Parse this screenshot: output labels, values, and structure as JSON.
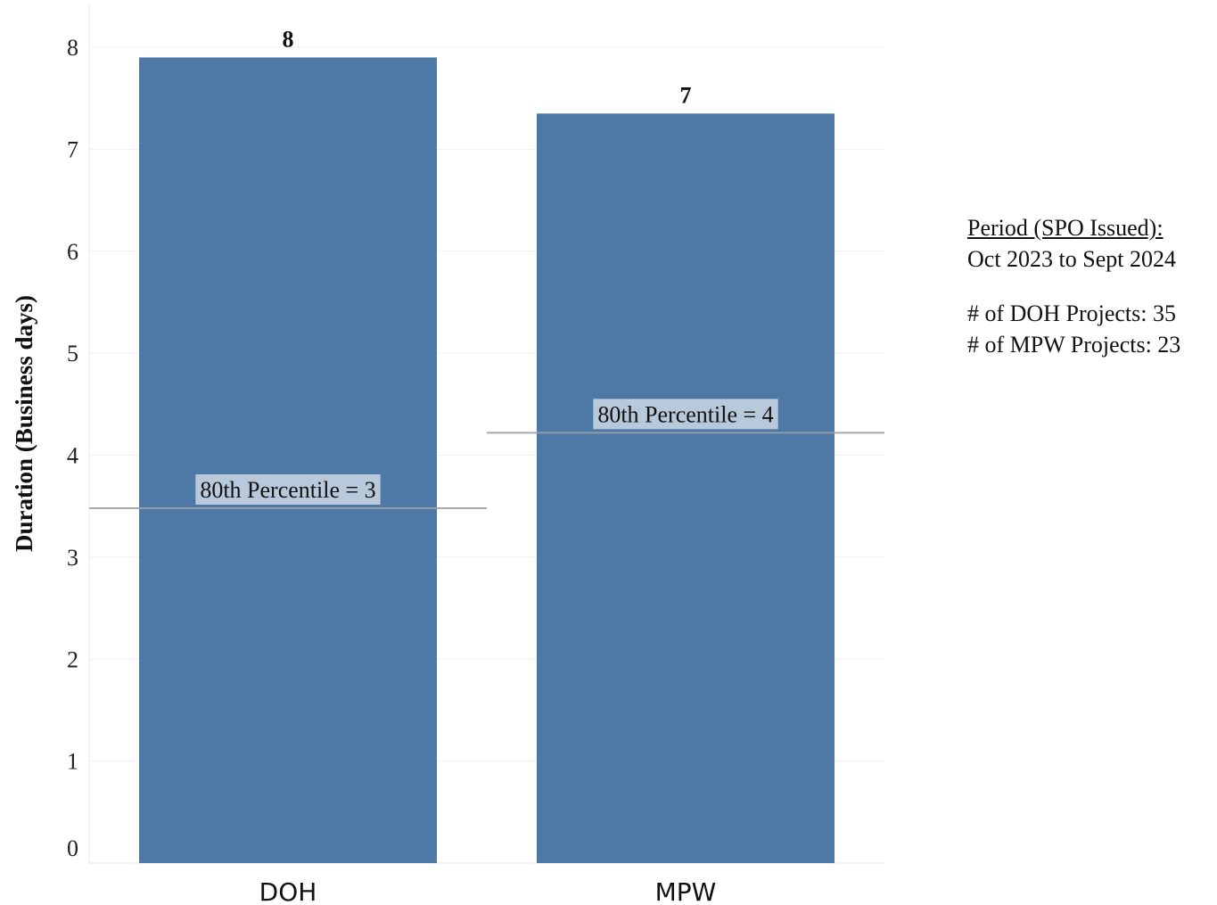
{
  "chart_data": {
    "type": "bar",
    "categories": [
      "DOH",
      "MPW"
    ],
    "values": [
      7.9,
      7.35
    ],
    "data_labels": [
      "8",
      "7"
    ],
    "ylabel": "Duration (Business days)",
    "ylim": [
      0,
      8
    ],
    "yticks": [
      0,
      1,
      2,
      3,
      4,
      5,
      6,
      7,
      8
    ],
    "grid": true,
    "bar_color": "#4e79a7",
    "reference_lines": [
      {
        "category": "DOH",
        "value": 3.48,
        "label": "80th Percentile = 3"
      },
      {
        "category": "MPW",
        "value": 4.22,
        "label": "80th Percentile = 4"
      }
    ]
  },
  "info": {
    "period_heading": "Period (SPO Issued):",
    "period_value": "Oct 2023 to Sept 2024",
    "doh_projects": "# of DOH Projects: 35",
    "mpw_projects": "# of MPW Projects: 23"
  }
}
